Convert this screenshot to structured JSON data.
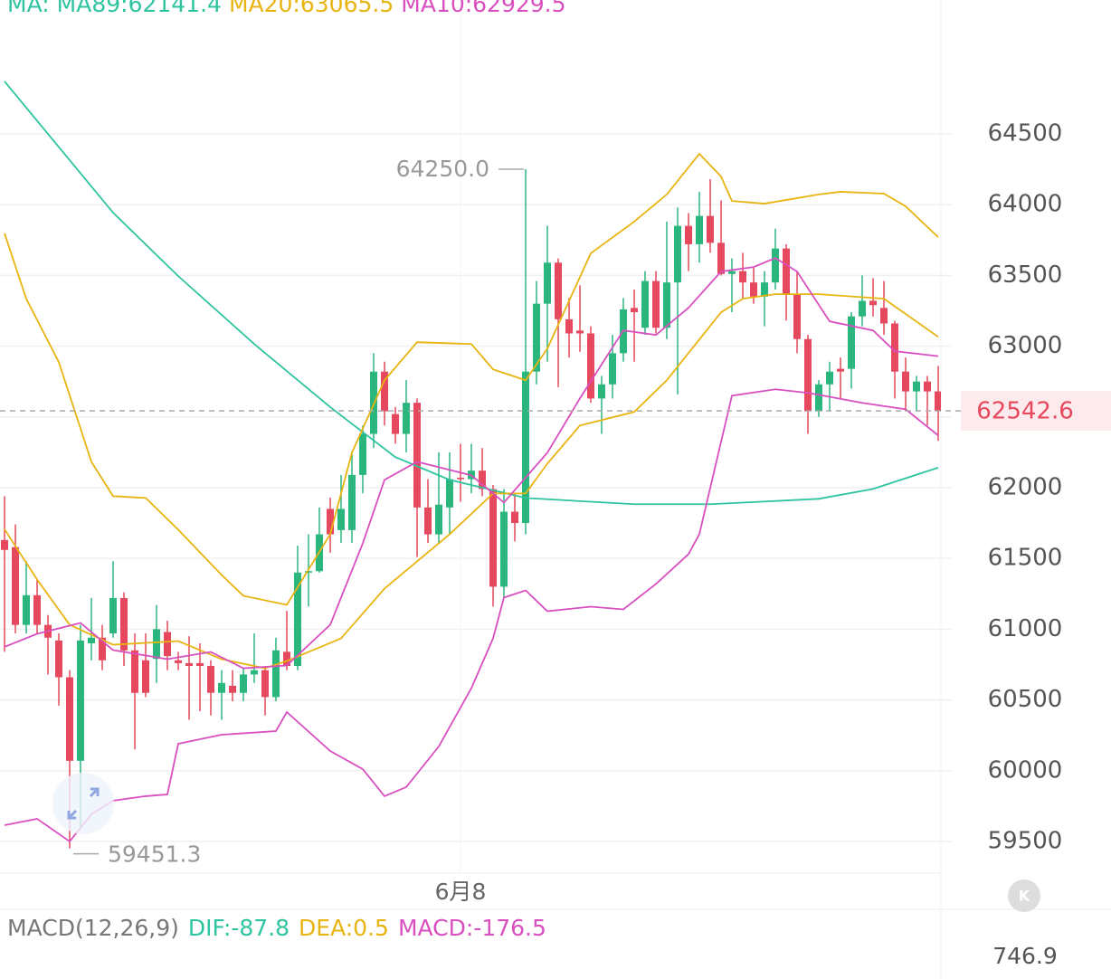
{
  "chart_data": {
    "type": "candlestick",
    "header": {
      "prefix": "MA:"
    },
    "macd": {
      "title": "MACD(12,26,9)",
      "dif": "DIF:-87.8",
      "dea": "DEA:0.5",
      "macd": "MACD:-176.5",
      "axis_top": "746.9"
    },
    "high_label": "64250.0",
    "low_label": "59451.3",
    "up_color": "#2bb67e",
    "down_color": "#e6495d",
    "ylim": [
      59276,
      65446
    ],
    "yticks": [
      59500,
      60000,
      60500,
      61000,
      61500,
      62000,
      62500,
      63000,
      63500,
      64000,
      64500
    ],
    "grid": true,
    "categories": [
      null,
      null,
      null,
      null,
      null,
      null,
      null,
      null,
      null,
      null,
      null,
      null,
      null,
      null,
      null,
      null,
      null,
      null,
      null,
      null,
      null,
      null,
      null,
      null,
      null,
      null,
      null,
      null,
      null,
      null,
      null,
      null,
      null,
      null,
      null,
      null,
      null,
      null,
      null,
      null,
      null,
      null,
      "6月8",
      null,
      null,
      null,
      null,
      null,
      null,
      null,
      null,
      null,
      null,
      null,
      null,
      null,
      null,
      null,
      null,
      null,
      null,
      null,
      null,
      null,
      null,
      null,
      null,
      null,
      null,
      null,
      null,
      null,
      null,
      null,
      null,
      null,
      null,
      null,
      null,
      null,
      null,
      null,
      null,
      null,
      null,
      null,
      null
    ],
    "ohlc": [
      [
        61630,
        61940,
        60840,
        61560
      ],
      [
        61580,
        61740,
        60970,
        61030
      ],
      [
        61030,
        61480,
        60970,
        61240
      ],
      [
        61240,
        61350,
        60970,
        61030
      ],
      [
        61030,
        61100,
        60680,
        60940
      ],
      [
        60920,
        60970,
        60460,
        60660
      ],
      [
        60660,
        60710,
        59451.3,
        60070
      ],
      [
        60070,
        61030,
        59590,
        60920
      ],
      [
        60900,
        61220,
        60780,
        60940
      ],
      [
        60940,
        61030,
        60710,
        60780
      ],
      [
        60970,
        61480,
        60940,
        61220
      ],
      [
        61220,
        61260,
        60740,
        60850
      ],
      [
        60850,
        60970,
        60150,
        60550
      ],
      [
        60780,
        60970,
        60520,
        60550
      ],
      [
        60790,
        61170,
        60620,
        61000
      ],
      [
        60980,
        61060,
        60710,
        60810
      ],
      [
        60780,
        60840,
        60710,
        60760
      ],
      [
        60760,
        60950,
        60360,
        60740
      ],
      [
        60760,
        60900,
        60420,
        60740
      ],
      [
        60740,
        60780,
        60390,
        60550
      ],
      [
        60550,
        60710,
        60360,
        60620
      ],
      [
        60600,
        60710,
        60490,
        60550
      ],
      [
        60550,
        60720,
        60490,
        60680
      ],
      [
        60680,
        60970,
        60620,
        60710
      ],
      [
        60710,
        60740,
        60390,
        60520
      ],
      [
        60520,
        60940,
        60490,
        60850
      ],
      [
        60840,
        61130,
        60710,
        60740
      ],
      [
        60740,
        61590,
        60710,
        61400
      ],
      [
        61400,
        61670,
        61160,
        61410
      ],
      [
        61410,
        61860,
        61400,
        61670
      ],
      [
        61850,
        61930,
        61540,
        61670
      ],
      [
        61700,
        62090,
        61610,
        61850
      ],
      [
        61700,
        62250,
        61610,
        62090
      ],
      [
        62090,
        62440,
        61960,
        62380
      ],
      [
        62380,
        62950,
        62280,
        62820
      ],
      [
        62820,
        62890,
        62440,
        62540
      ],
      [
        62520,
        62570,
        62310,
        62380
      ],
      [
        62380,
        62760,
        62250,
        62600
      ],
      [
        62600,
        62630,
        61510,
        61860
      ],
      [
        61860,
        62060,
        61610,
        61670
      ],
      [
        61670,
        62250,
        61610,
        61880
      ],
      [
        61860,
        62250,
        61670,
        62060
      ],
      [
        62070,
        62310,
        61900,
        62060
      ],
      [
        62060,
        62310,
        61960,
        62120
      ],
      [
        62120,
        62280,
        61940,
        61990
      ],
      [
        61990,
        62020,
        61160,
        61300
      ],
      [
        61300,
        61990,
        61220,
        61830
      ],
      [
        61830,
        61960,
        61620,
        61750
      ],
      [
        61750,
        64250.0,
        61670,
        62820
      ],
      [
        62820,
        63460,
        62730,
        63300
      ],
      [
        63300,
        63850,
        62890,
        63590
      ],
      [
        63590,
        63620,
        62710,
        63190
      ],
      [
        63190,
        63340,
        62920,
        63090
      ],
      [
        63110,
        63430,
        62960,
        63090
      ],
      [
        63090,
        63140,
        62600,
        62630
      ],
      [
        62630,
        62790,
        62380,
        62730
      ],
      [
        62730,
        63080,
        62630,
        62950
      ],
      [
        62950,
        63340,
        62890,
        63260
      ],
      [
        63270,
        63400,
        62890,
        63240
      ],
      [
        63130,
        63530,
        63080,
        63460
      ],
      [
        63460,
        63530,
        63090,
        63130
      ],
      [
        63130,
        63880,
        63050,
        63450
      ],
      [
        63450,
        63980,
        62660,
        63850
      ],
      [
        63850,
        63940,
        63530,
        63720
      ],
      [
        63720,
        64090,
        63590,
        63920
      ],
      [
        63920,
        64180,
        63660,
        63730
      ],
      [
        63730,
        64030,
        63500,
        63510
      ],
      [
        63510,
        63620,
        63240,
        63530
      ],
      [
        63530,
        63660,
        63340,
        63450
      ],
      [
        63450,
        63560,
        63300,
        63350
      ],
      [
        63350,
        63530,
        63140,
        63450
      ],
      [
        63450,
        63830,
        63400,
        63690
      ],
      [
        63690,
        63720,
        63180,
        63370
      ],
      [
        63370,
        63530,
        62950,
        63050
      ],
      [
        63050,
        63080,
        62380,
        62540
      ],
      [
        62540,
        62760,
        62500,
        62730
      ],
      [
        62730,
        62890,
        62540,
        62820
      ],
      [
        62840,
        62920,
        62630,
        62820
      ],
      [
        62840,
        63240,
        62700,
        63210
      ],
      [
        63210,
        63500,
        63140,
        63320
      ],
      [
        63320,
        63480,
        63210,
        63290
      ],
      [
        63270,
        63460,
        63080,
        63160
      ],
      [
        63160,
        63180,
        62630,
        62820
      ],
      [
        62820,
        62920,
        62540,
        62680
      ],
      [
        62680,
        62790,
        62540,
        62750
      ],
      [
        62750,
        62790,
        62440,
        62680
      ],
      [
        62680,
        62860,
        62330,
        62542.6
      ]
    ],
    "lines": [
      {
        "name": "MA89:62141.4",
        "color": "#2ec4a0",
        "x": [
          0,
          10,
          16,
          23,
          30,
          36,
          41,
          48,
          58,
          65,
          75,
          80,
          86
        ],
        "values": [
          64871,
          63943,
          63495,
          63015,
          62569,
          62216,
          62055,
          61927,
          61883,
          61883,
          61921,
          61991,
          62141.4
        ]
      },
      {
        "name": "MA20:63065.5",
        "color": "#e8b410",
        "x": [
          0,
          3,
          6,
          10,
          16,
          20,
          24,
          26,
          31,
          35,
          38,
          41,
          45,
          48,
          50,
          53,
          58,
          61,
          66,
          68,
          71,
          75,
          81,
          86
        ],
        "values": [
          61706,
          61351,
          61031,
          60890,
          60916,
          60788,
          60724,
          60775,
          60935,
          61287,
          61479,
          61671,
          61959,
          61959,
          62170,
          62439,
          62535,
          62759,
          63239,
          63335,
          63367,
          63367,
          63335,
          63065.5
        ]
      },
      {
        "name": "MA10:62929.5",
        "color": "#d94fc0",
        "x": [
          0,
          3,
          7,
          10,
          15,
          19,
          22,
          26,
          30,
          33,
          35,
          38,
          43,
          46,
          50,
          53,
          57,
          60,
          63,
          66,
          69,
          71,
          73,
          76,
          80,
          82,
          86
        ],
        "values": [
          60875,
          60967,
          61044,
          60852,
          60788,
          60839,
          60724,
          60743,
          61031,
          61607,
          62055,
          62183,
          62087,
          61895,
          62247,
          62631,
          63111,
          63079,
          63271,
          63527,
          63559,
          63623,
          63527,
          63175,
          63111,
          62964,
          62929.5
        ]
      },
      {
        "color": "#e8b410",
        "x": [
          0,
          2,
          5,
          8,
          10,
          13,
          16,
          20,
          22,
          26,
          30,
          32,
          35,
          38,
          43,
          45,
          48,
          50,
          54,
          58,
          61,
          64,
          66,
          67,
          70,
          75,
          77,
          81,
          83,
          86
        ],
        "values": [
          63797,
          63335,
          62887,
          62183,
          61940,
          61927,
          61703,
          61383,
          61236,
          61172,
          61671,
          62247,
          62759,
          63028,
          63015,
          62836,
          62759,
          62983,
          63656,
          63880,
          64072,
          64359,
          64199,
          64026,
          64007,
          64072,
          64091,
          64078,
          63988,
          63770
        ]
      },
      {
        "color": "#d94fc0",
        "x": [
          0,
          3,
          6,
          8,
          10,
          13,
          15,
          16,
          20,
          25,
          26,
          30,
          33,
          35,
          37,
          40,
          43,
          45,
          46,
          48,
          50,
          54,
          57,
          60,
          63,
          64,
          67,
          71,
          74,
          79,
          83,
          86
        ],
        "values": [
          59615,
          59660,
          59500,
          59692,
          59788,
          59820,
          59832,
          60190,
          60254,
          60280,
          60414,
          60139,
          60011,
          59820,
          59884,
          60171,
          60583,
          60935,
          61223,
          61274,
          61127,
          61159,
          61140,
          61319,
          61530,
          61671,
          62650,
          62695,
          62670,
          62599,
          62554,
          62369
        ]
      }
    ]
  }
}
